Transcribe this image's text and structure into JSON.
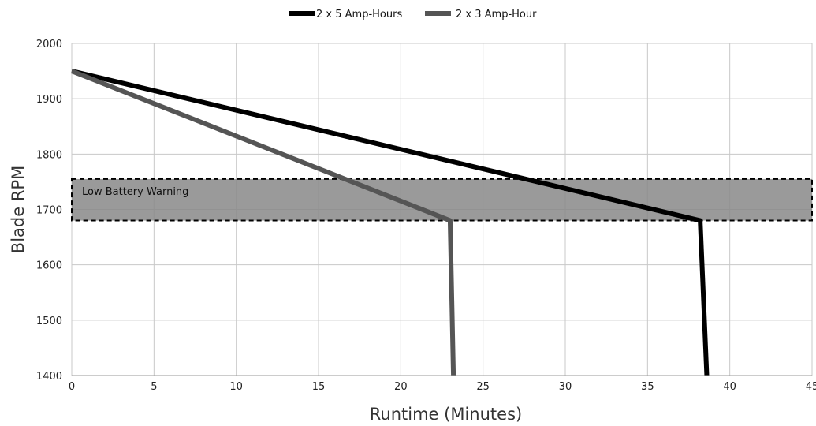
{
  "chart_data": {
    "type": "line",
    "title": "",
    "xlabel": "Runtime (Minutes)",
    "ylabel": "Blade RPM",
    "xlim": [
      0,
      45
    ],
    "ylim": [
      1400,
      2000
    ],
    "x_ticks": [
      0,
      5,
      10,
      15,
      20,
      25,
      30,
      35,
      40,
      45
    ],
    "y_ticks": [
      1400,
      1500,
      1600,
      1700,
      1800,
      1900,
      2000
    ],
    "grid": true,
    "legend_position": "top-center",
    "series": [
      {
        "name": "2 x 5 Amp-Hours",
        "color": "#000000",
        "points": [
          [
            0,
            1950
          ],
          [
            38.2,
            1680
          ],
          [
            38.6,
            1400
          ]
        ]
      },
      {
        "name": "2 x 3 Amp-Hour",
        "color": "#555555",
        "points": [
          [
            0,
            1950
          ],
          [
            23.0,
            1680
          ],
          [
            23.2,
            1400
          ]
        ]
      }
    ],
    "annotations": [
      {
        "type": "band",
        "label": "Low Battery Warning",
        "y_range": [
          1680,
          1755
        ],
        "x_range": [
          0,
          45
        ],
        "fill": "#888888",
        "border": "dashed"
      }
    ]
  }
}
